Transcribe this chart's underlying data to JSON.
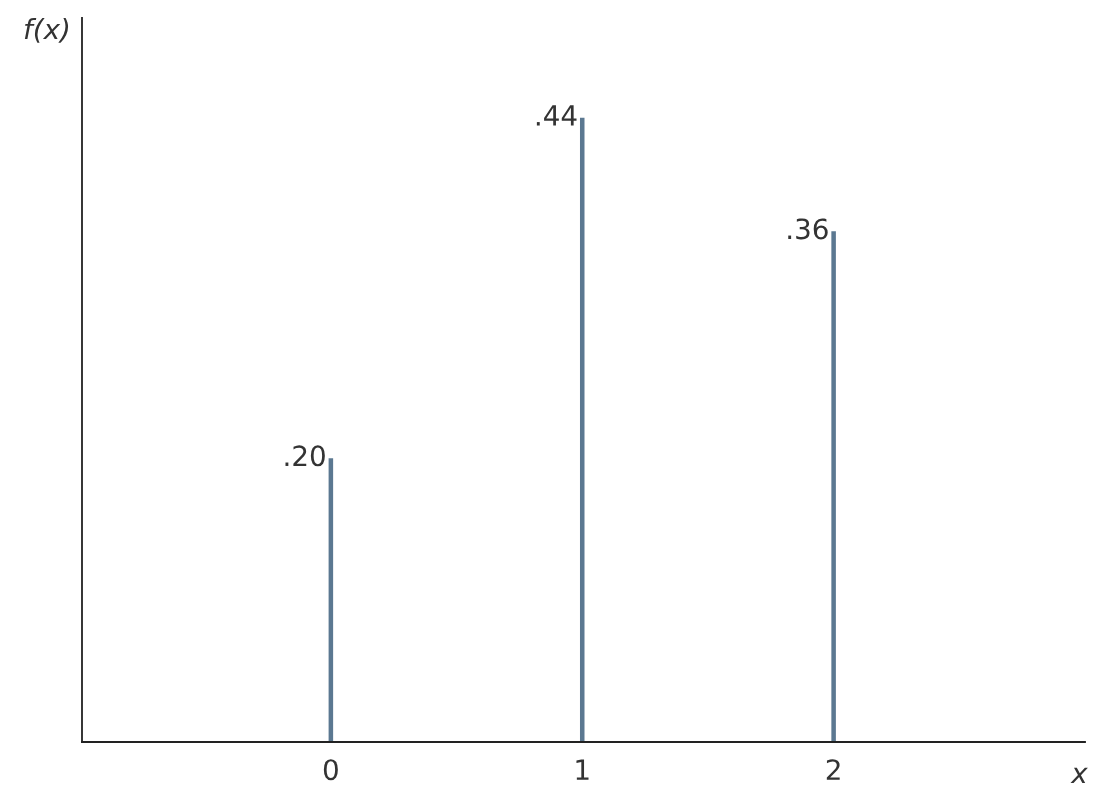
{
  "chart_data": {
    "type": "bar",
    "categories": [
      "0",
      "1",
      "2"
    ],
    "values": [
      0.2,
      0.44,
      0.36
    ],
    "value_labels": [
      ".20",
      ".44",
      ".36"
    ],
    "color": "#5b7891",
    "xlabel": "x",
    "ylabel": "f(x)",
    "grid": false,
    "legend": false,
    "tick_labels": "x"
  }
}
